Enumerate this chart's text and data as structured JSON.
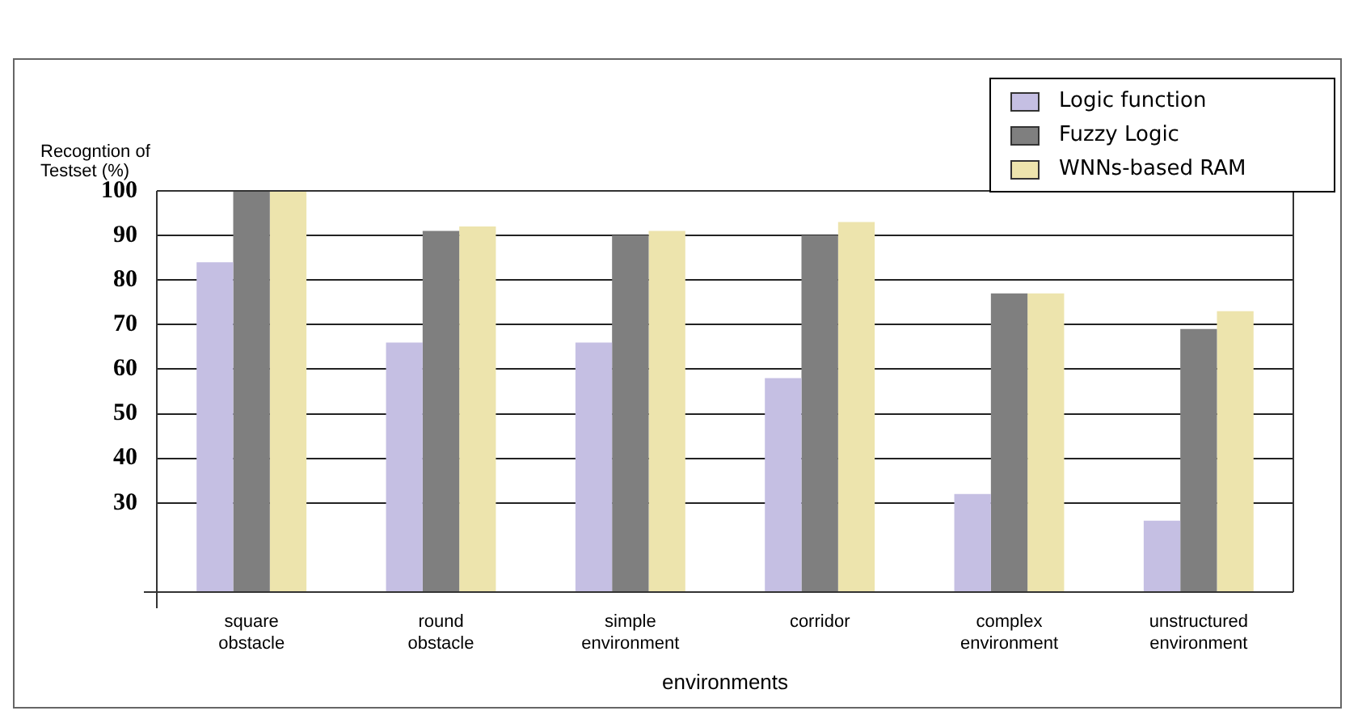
{
  "chart_data": {
    "type": "bar",
    "xlabel": "environments",
    "ylabel": "Recogntion of Testset (%)",
    "categories": [
      "square obstacle",
      "round obstacle",
      "simple environment",
      "corridor",
      "complex environment",
      "unstructured environment"
    ],
    "series": [
      {
        "name": "Logic function",
        "color": "#c5bfe3",
        "values": [
          84,
          66,
          66,
          58,
          32,
          26
        ]
      },
      {
        "name": "Fuzzy Logic",
        "color": "#7f7f7f",
        "values": [
          100,
          91,
          90,
          90,
          77,
          69
        ]
      },
      {
        "name": "WNNs-based RAM",
        "color": "#ede4ad",
        "values": [
          100,
          92,
          91,
          93,
          77,
          73
        ]
      }
    ],
    "ylim": [
      10,
      100
    ],
    "yticks": [
      30,
      40,
      50,
      60,
      70,
      80,
      90,
      100
    ],
    "grid": "y",
    "legend": "top right"
  }
}
